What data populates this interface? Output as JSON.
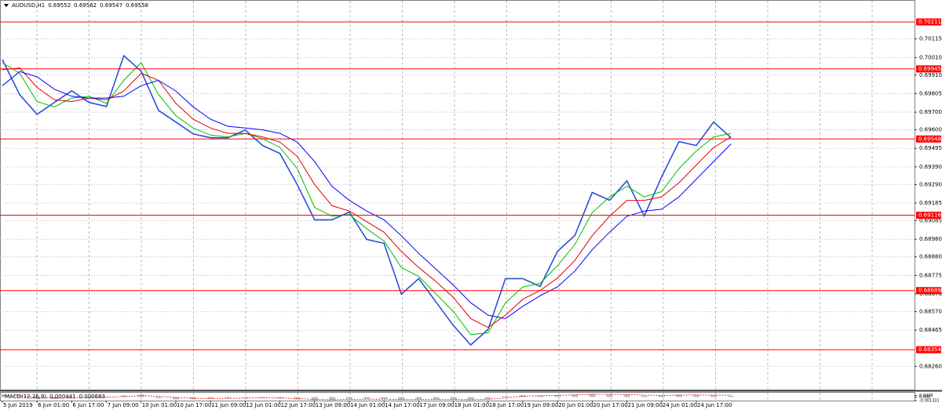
{
  "chart_data": [
    {
      "type": "line",
      "title": "AUDUSD,H1",
      "last_bar": [
        0.69552,
        0.69562,
        0.69547,
        0.69558
      ],
      "categories": [
        "5 Jun 2019",
        null,
        "6 Jun 01:00",
        null,
        "6 Jun 17:00",
        null,
        "7 Jun 09:00",
        null,
        "10 Jun 01:00",
        null,
        "10 Jun 17:00",
        null,
        "11 Jun 09:00",
        null,
        "12 Jun 01:00",
        null,
        "12 Jun 17:00",
        null,
        "13 Jun 09:00",
        null,
        "14 Jun 01:00",
        null,
        "14 Jun 17:00",
        null,
        "17 Jun 09:00",
        null,
        "18 Jun 01:00",
        null,
        "18 Jun 17:00",
        null,
        "19 Jun 09:00",
        null,
        "20 Jun 01:00",
        null,
        "20 Jun 17:00",
        null,
        "21 Jun 09:00",
        null,
        "24 Jun 01:00",
        null,
        "24 Jun 17:00",
        null,
        null
      ],
      "series": [
        {
          "color": "#2b4fd8",
          "values": [
            0.69998,
            0.69799,
            0.69688,
            0.69755,
            0.69821,
            0.69755,
            0.69732,
            0.7002,
            0.69932,
            0.6971,
            0.69644,
            0.69577,
            0.69555,
            0.69555,
            0.69599,
            0.69511,
            0.69466,
            0.69289,
            0.6909,
            0.6909,
            0.69134,
            0.68979,
            0.68957,
            0.68669,
            0.68757,
            0.68624,
            0.68491,
            0.68381,
            0.68469,
            0.68757,
            0.68757,
            0.68713,
            0.68912,
            0.69001,
            0.69245,
            0.69201,
            0.69311,
            0.69112,
            0.69333,
            0.69533,
            0.69511,
            0.69644,
            0.69555
          ]
        },
        {
          "color": "#00c000",
          "values": [
            0.6998,
            0.6992,
            0.6976,
            0.6973,
            0.6978,
            0.6979,
            0.6975,
            0.6988,
            0.6998,
            0.698,
            0.6968,
            0.6961,
            0.6957,
            0.6956,
            0.6958,
            0.6955,
            0.695,
            0.6938,
            0.6916,
            0.6911,
            0.6912,
            0.6904,
            0.6897,
            0.6882,
            0.6877,
            0.6867,
            0.6857,
            0.6844,
            0.6845,
            0.6862,
            0.6871,
            0.6873,
            0.6883,
            0.6895,
            0.6913,
            0.6922,
            0.6928,
            0.6922,
            0.6925,
            0.6938,
            0.6948,
            0.6956,
            0.6958
          ]
        },
        {
          "color": "#e00000",
          "values": [
            0.6994,
            0.6995,
            0.6984,
            0.6977,
            0.6976,
            0.6978,
            0.6977,
            0.6982,
            0.6992,
            0.6988,
            0.6975,
            0.6966,
            0.6961,
            0.6958,
            0.6958,
            0.6956,
            0.6953,
            0.6945,
            0.6929,
            0.6917,
            0.6914,
            0.6908,
            0.6902,
            0.6891,
            0.6882,
            0.6874,
            0.6865,
            0.6853,
            0.6848,
            0.6855,
            0.6864,
            0.6869,
            0.6876,
            0.6886,
            0.69,
            0.6911,
            0.692,
            0.692,
            0.6922,
            0.693,
            0.694,
            0.695,
            0.6956
          ]
        },
        {
          "color": "#0000ff",
          "values": [
            0.6985,
            0.6993,
            0.699,
            0.6983,
            0.6979,
            0.6978,
            0.6978,
            0.6979,
            0.6985,
            0.6988,
            0.6982,
            0.6973,
            0.6966,
            0.6962,
            0.6961,
            0.696,
            0.6958,
            0.6953,
            0.6942,
            0.6928,
            0.692,
            0.6914,
            0.6909,
            0.69,
            0.689,
            0.6881,
            0.6872,
            0.6862,
            0.6855,
            0.6853,
            0.686,
            0.6866,
            0.6871,
            0.688,
            0.6892,
            0.6902,
            0.6911,
            0.6914,
            0.6915,
            0.6922,
            0.6932,
            0.6942,
            0.6952
          ]
        }
      ],
      "ylim": [
        0.68128,
        0.70331
      ],
      "yticks": [
        0.70115,
        {
          "value": 0.7001,
          "label": "0.70010"
        },
        {
          "value": 0.6991,
          "label": "0.69910"
        },
        0.69805,
        {
          "value": 0.697,
          "label": "0.69700"
        },
        {
          "value": 0.696,
          "label": "0.69600"
        },
        0.69495,
        {
          "value": 0.6939,
          "label": "0.69390"
        },
        {
          "value": 0.6929,
          "label": "0.69290"
        },
        0.69185,
        0.69085,
        {
          "value": 0.6898,
          "label": "0.68980"
        },
        {
          "value": 0.6888,
          "label": "0.68880"
        },
        0.68775,
        {
          "value": 0.6867,
          "label": "0.68670"
        },
        {
          "value": 0.6857,
          "label": "0.68570"
        },
        0.68465,
        {
          "value": 0.6826,
          "label": "0.68260"
        }
      ],
      "grid": true,
      "levels": [
        0.70211,
        0.69945,
        0.69548,
        0.69116,
        0.68689,
        0.68354
      ],
      "level_color": "#ff0000"
    },
    {
      "type": "macd",
      "title": "MACD(12,26,9)",
      "color": "#c0c0c0",
      "values": [
        0.0009,
        0,
        -0.0008,
        -0.0007,
        -0.0001,
        0.0001,
        -0.0002,
        0.0006,
        0.0009,
        -0.0005,
        -0.0009,
        -0.0008,
        -0.0006,
        -0.0004,
        -0.0002,
        -0.0003,
        -0.0005,
        -0.0009,
        -0.0012,
        -0.0011,
        -0.0007,
        -0.0007,
        -0.0008,
        -0.0011,
        -0.0009,
        -0.0009,
        -0.001,
        -0.0011,
        -0.0008,
        0.0004,
        0.0007,
        0.0005,
        0.0007,
        0.0009,
        0.0012,
        0.001,
        0.0009,
        0.0005,
        0.0006,
        0.0009,
        0.0008,
        0.0007,
        0.000441
      ],
      "signal": {
        "color": "#e00000",
        "values": [
          0.0006,
          0.0004,
          -0.0001,
          -0.0004,
          -0.0004,
          -0.0002,
          -0.0001,
          0.0002,
          0.0005,
          0.0003,
          -0.0002,
          -0.0005,
          -0.0006,
          -0.0005,
          -0.0004,
          -0.0003,
          -0.0004,
          -0.0006,
          -0.0009,
          -0.001,
          -0.0009,
          -0.0008,
          -0.0008,
          -0.0009,
          -0.0009,
          -0.0009,
          -0.0009,
          -0.001,
          -0.0009,
          -0.0003,
          0.0003,
          0.0005,
          0.0006,
          0.0008,
          0.001,
          0.001,
          0.0009,
          0.0007,
          0.0006,
          0.0007,
          0.0008,
          0.0007,
          0.000683
        ]
      },
      "ylim": [
        -0.001331,
        0.0016
      ],
      "yticks": [
        0.0006,
        {
          "value": 0,
          "label": "0.000"
        },
        -0.001331
      ]
    }
  ]
}
